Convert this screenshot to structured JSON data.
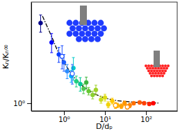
{
  "chart_data": {
    "type": "scatter",
    "x_label": "D/dₚ",
    "y_label": "Kₙ/Kₙ∞",
    "log": true,
    "grid": false,
    "xlim": [
      0.16,
      575
    ],
    "ylim": [
      0.9,
      4
    ],
    "xticks": [
      {
        "value": 1,
        "label": "10⁰"
      },
      {
        "value": 10,
        "label": "10¹"
      },
      {
        "value": 100,
        "label": "10²"
      }
    ],
    "yticks": [
      {
        "value": 1,
        "label": "10⁰"
      }
    ],
    "series": [
      {
        "type": "scatter",
        "marker": "circle",
        "x": [
          0.27,
          0.5,
          0.75,
          1.0,
          1.2,
          1.5,
          1.7,
          2.0,
          2.5,
          3.0,
          3.5,
          4.0,
          5.0,
          6.0,
          8,
          10,
          12,
          15,
          20,
          25,
          30,
          40,
          50,
          70,
          90,
          120,
          150
        ],
        "values": [
          3.0,
          2.3,
          1.95,
          1.75,
          1.55,
          1.45,
          1.62,
          1.35,
          1.3,
          1.22,
          1.33,
          1.18,
          1.12,
          1.2,
          1.05,
          1.08,
          0.98,
          1.03,
          0.97,
          0.96,
          1.0,
          0.97,
          1.0,
          1.01,
          1.0,
          0.99,
          1.0
        ],
        "errors": [
          0.35,
          0.3,
          0.2,
          0.2,
          0.15,
          0.12,
          0.25,
          0.1,
          0.12,
          0.08,
          0.1,
          0.06,
          0.06,
          0.08,
          0.05,
          0.05,
          0.04,
          0.04,
          0.03,
          0.03,
          0.03,
          0.03,
          0.02,
          0.02,
          0.02,
          0.02,
          0.02
        ],
        "colors": [
          "#00008b",
          "#0000ff",
          "#0a3cff",
          "#1a5cff",
          "#2a8cff",
          "#00b4ff",
          "#00c8c8",
          "#20d080",
          "#00c896",
          "#50c850",
          "#3cb43c",
          "#64c832",
          "#8cd232",
          "#a0d228",
          "#c8dc1e",
          "#dcdc14",
          "#f0d20a",
          "#ffc800",
          "#ffb400",
          "#ffa000",
          "#ff9600",
          "#ff8200",
          "#ff6e00",
          "#ff5a00",
          "#ff4000",
          "#ff2000",
          "#ff0000"
        ]
      },
      {
        "type": "scatter",
        "marker": "circle-open",
        "x": [
          0.9,
          1.6,
          18,
          35
        ],
        "values": [
          1.9,
          1.5,
          0.97,
          0.95
        ],
        "errors": [
          0.3,
          0.2,
          0.04,
          0.03
        ],
        "colors": [
          "#1e50ff",
          "#3264ff",
          "#ffa500",
          "#ff8c00"
        ]
      },
      {
        "type": "line",
        "color": "#000000",
        "line_style": "dashdot",
        "x": [
          0.3,
          0.5,
          0.7,
          1,
          1.5,
          2,
          3,
          5,
          10,
          20,
          50,
          100,
          200
        ],
        "values": [
          3.3,
          2.5,
          2.05,
          1.75,
          1.5,
          1.38,
          1.25,
          1.15,
          1.07,
          1.035,
          1.014,
          1.007,
          1.003
        ]
      }
    ]
  }
}
